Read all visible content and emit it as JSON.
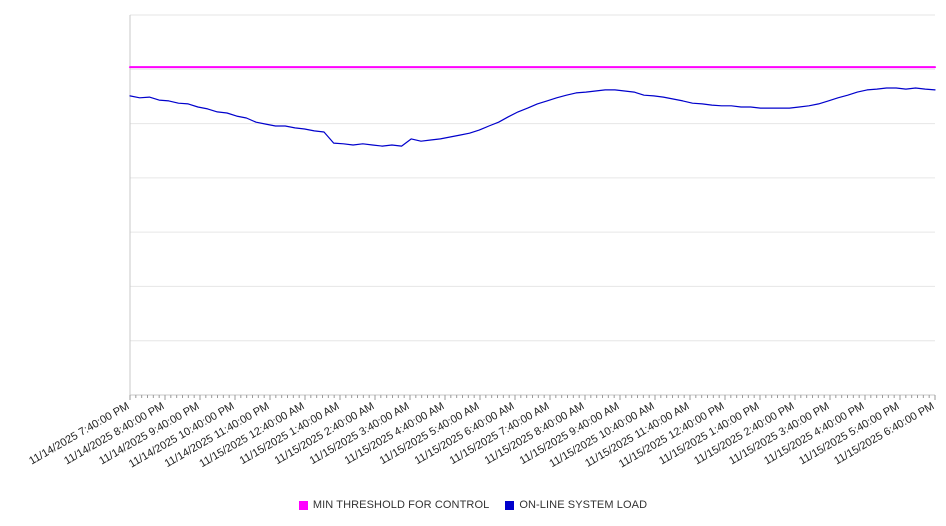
{
  "chart_data": {
    "type": "line",
    "title": "",
    "xlabel": "",
    "ylabel": "",
    "ylim": [
      0,
      100
    ],
    "grid": "horizontal",
    "grid_intervals": 7,
    "legend_position": "bottom",
    "x_minor_ticks_per_label": 6,
    "x_labels": [
      "11/14/2025 7:40:00 PM",
      "11/14/2025 8:40:00 PM",
      "11/14/2025 9:40:00 PM",
      "11/14/2025 10:40:00 PM",
      "11/14/2025 11:40:00 PM",
      "11/15/2025 12:40:00 AM",
      "11/15/2025 1:40:00 AM",
      "11/15/2025 2:40:00 AM",
      "11/15/2025 3:40:00 AM",
      "11/15/2025 4:40:00 AM",
      "11/15/2025 5:40:00 AM",
      "11/15/2025 6:40:00 AM",
      "11/15/2025 7:40:00 AM",
      "11/15/2025 8:40:00 AM",
      "11/15/2025 9:40:00 AM",
      "11/15/2025 10:40:00 AM",
      "11/15/2025 11:40:00 AM",
      "11/15/2025 12:40:00 PM",
      "11/15/2025 1:40:00 PM",
      "11/15/2025 2:40:00 PM",
      "11/15/2025 3:40:00 PM",
      "11/15/2025 4:40:00 PM",
      "11/15/2025 5:40:00 PM",
      "11/15/2025 6:40:00 PM"
    ],
    "series": [
      {
        "name": "MIN THRESHOLD FOR CONTROL",
        "color": "#ff00ff",
        "style": "threshold-constant",
        "values": [
          86.3,
          86.3
        ]
      },
      {
        "name": "ON-LINE SYSTEM LOAD",
        "color": "#0000cc",
        "style": "line",
        "values": [
          78.7,
          78.2,
          78.4,
          77.6,
          77.4,
          76.8,
          76.6,
          75.8,
          75.3,
          74.5,
          74.2,
          73.4,
          72.9,
          71.8,
          71.3,
          70.8,
          70.8,
          70.3,
          70.0,
          69.5,
          69.2,
          66.3,
          66.1,
          65.8,
          66.1,
          65.8,
          65.5,
          65.8,
          65.5,
          67.4,
          66.8,
          67.1,
          67.4,
          67.9,
          68.4,
          68.9,
          69.7,
          70.8,
          71.8,
          73.2,
          74.5,
          75.5,
          76.6,
          77.4,
          78.2,
          78.9,
          79.5,
          79.7,
          80.0,
          80.3,
          80.3,
          80.0,
          79.7,
          78.9,
          78.7,
          78.4,
          77.9,
          77.4,
          76.8,
          76.6,
          76.3,
          76.1,
          76.1,
          75.8,
          75.8,
          75.5,
          75.5,
          75.5,
          75.5,
          75.8,
          76.1,
          76.6,
          77.4,
          78.2,
          78.9,
          79.7,
          80.3,
          80.5,
          80.8,
          80.8,
          80.5,
          80.8,
          80.5,
          80.3
        ]
      }
    ],
    "colors": {
      "gridline": "#e6e6e6",
      "axis": "#c9c9c9",
      "tick": "#999999",
      "tick_label": "#222222",
      "background": "#ffffff"
    }
  }
}
